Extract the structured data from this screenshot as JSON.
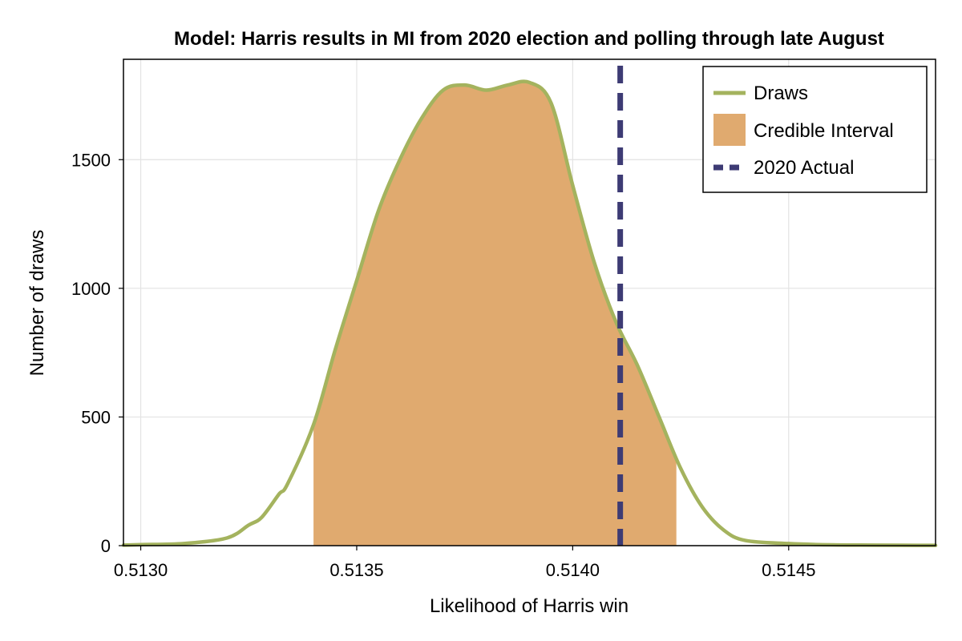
{
  "chart_data": {
    "type": "area",
    "title": "Model: Harris results in MI from 2020 election and polling through late August",
    "xlabel": "Likelihood of Harris win",
    "ylabel": "Number of draws",
    "xlim": [
      0.51296,
      0.51484
    ],
    "ylim": [
      0,
      1890
    ],
    "x_ticks": [
      0.513,
      0.5135,
      0.514,
      0.5145
    ],
    "x_tick_labels": [
      "0.5130",
      "0.5135",
      "0.5140",
      "0.5145"
    ],
    "y_ticks": [
      0,
      500,
      1000,
      1500
    ],
    "y_tick_labels": [
      "0",
      "500",
      "1000",
      "1500"
    ],
    "grid": true,
    "legend_position": "top-right",
    "series": [
      {
        "name": "Draws",
        "kind": "density-line",
        "color": "#a4b35e",
        "x": [
          0.51296,
          0.513,
          0.5131,
          0.5132,
          0.51325,
          0.51328,
          0.51332,
          0.51334,
          0.5134,
          0.51345,
          0.5135,
          0.51355,
          0.5136,
          0.51365,
          0.5137,
          0.51375,
          0.5138,
          0.51385,
          0.5139,
          0.51395,
          0.514,
          0.51405,
          0.5141,
          0.51415,
          0.5142,
          0.51425,
          0.5143,
          0.51435,
          0.5144,
          0.5145,
          0.5146,
          0.5147,
          0.51484
        ],
        "y": [
          2,
          4,
          8,
          30,
          80,
          110,
          200,
          240,
          470,
          760,
          1030,
          1300,
          1500,
          1660,
          1770,
          1790,
          1770,
          1790,
          1800,
          1720,
          1400,
          1100,
          870,
          700,
          500,
          300,
          150,
          60,
          20,
          8,
          3,
          2,
          1
        ]
      },
      {
        "name": "Credible Interval",
        "kind": "shaded-interval",
        "color": "#e0aa6f",
        "range": [
          0.5134,
          0.51424
        ]
      },
      {
        "name": "2020 Actual",
        "kind": "vline",
        "color": "#3d3b74",
        "x": 0.51411
      }
    ]
  }
}
